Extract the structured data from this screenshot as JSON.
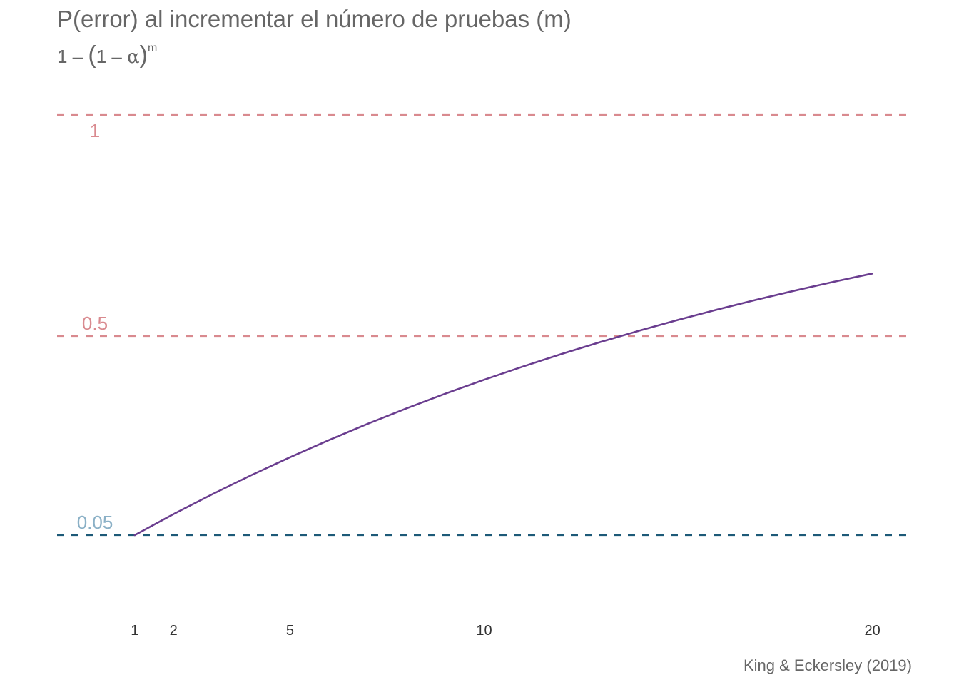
{
  "chart_data": {
    "type": "line",
    "title": "P(error) al incrementar el número de pruebas (m)",
    "subtitle": {
      "prefix": "1 – ",
      "open_paren": "(",
      "inner": "1 – ",
      "alpha": "α",
      "close_paren": ")",
      "exponent": "m"
    },
    "caption": "King & Eckersley (2019)",
    "x_ticks": [
      1,
      2,
      5,
      10,
      20
    ],
    "xlim": [
      -1,
      21
    ],
    "ylim": [
      -0.05,
      1.05
    ],
    "series": [
      {
        "color": "#6a3d8f",
        "x": [
          1,
          2,
          3,
          4,
          5,
          6,
          7,
          8,
          9,
          10,
          11,
          12,
          13,
          14,
          15,
          16,
          17,
          18,
          19,
          20
        ],
        "y": [
          0.05,
          0.0975,
          0.1426,
          0.1855,
          0.2262,
          0.2649,
          0.3017,
          0.3366,
          0.3698,
          0.4013,
          0.4312,
          0.4596,
          0.4867,
          0.5123,
          0.5367,
          0.5599,
          0.5819,
          0.6028,
          0.6226,
          0.6415
        ]
      }
    ],
    "reference_lines": [
      {
        "y": 1,
        "label": "1",
        "color": "#d98a8f",
        "label_color": "#d98a8f",
        "label_position": "below"
      },
      {
        "y": 0.5,
        "label": "0.5",
        "color": "#d98a8f",
        "label_color": "#d98a8f",
        "label_position": "above"
      },
      {
        "y": 0.05,
        "label": "0.05",
        "color": "#1d5a78",
        "label_color": "#8ab0c6",
        "label_position": "above"
      }
    ],
    "grid": false,
    "legend": "none"
  }
}
